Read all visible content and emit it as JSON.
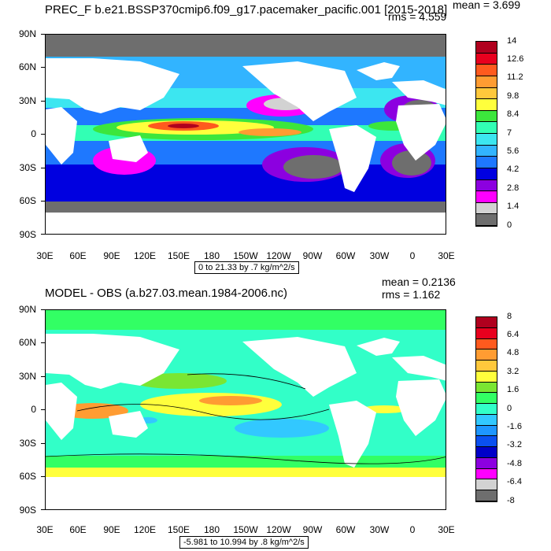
{
  "top_panel": {
    "title": "PREC_F b.e21.BSSP370cmip6.f09_g17.pacemaker_pacific.001 [2015-2018]",
    "mean_label": "mean = 3.699",
    "rms_label": "rms = 4.559",
    "range_label": "0 to 21.33 by .7 kg/m^2/s",
    "colorbar_labels": [
      "14",
      "12.6",
      "11.2",
      "9.8",
      "8.4",
      "7",
      "5.6",
      "4.2",
      "2.8",
      "1.4",
      "0"
    ],
    "colorbar_colors": [
      "#b0001e",
      "#e8001e",
      "#ff5a1e",
      "#ff9c32",
      "#ffc83c",
      "#ffff3c",
      "#3ce63c",
      "#32ffb4",
      "#3ce6f0",
      "#32b4ff",
      "#1e78ff",
      "#0000e0",
      "#8c00e0",
      "#ff00ff",
      "#d2d2d2",
      "#6e6e6e"
    ]
  },
  "bottom_panel": {
    "title": "MODEL - OBS (a.b27.03.mean.1984-2006.nc)",
    "mean_label": "mean = 0.2136",
    "rms_label": "rms = 1.162",
    "range_label": "-5.981 to 10.994 by .8 kg/m^2/s",
    "colorbar_labels": [
      "8",
      "6.4",
      "4.8",
      "3.2",
      "1.6",
      "0",
      "-1.6",
      "-3.2",
      "-4.8",
      "-6.4",
      "-8"
    ],
    "colorbar_colors": [
      "#b0001e",
      "#e8001e",
      "#ff5a1e",
      "#ff9c32",
      "#ffc83c",
      "#ffff3c",
      "#7ae632",
      "#32ff64",
      "#32ffc8",
      "#32c8ff",
      "#1e96ff",
      "#0a50f0",
      "#0000c8",
      "#8c00e0",
      "#ff00ff",
      "#d2d2d2",
      "#6e6e6e"
    ]
  },
  "axes": {
    "lat_labels": [
      "90N",
      "60N",
      "30N",
      "0",
      "30S",
      "60S",
      "90S"
    ],
    "lon_labels": [
      "30E",
      "60E",
      "90E",
      "120E",
      "150E",
      "180",
      "150W",
      "120W",
      "90W",
      "60W",
      "30W",
      "0",
      "30E"
    ]
  },
  "colors": {
    "land": "#ffffff",
    "missing": "#6e6e6e"
  }
}
